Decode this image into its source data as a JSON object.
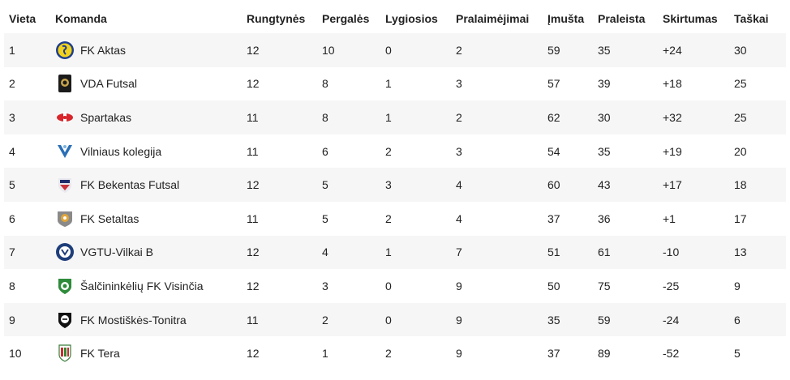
{
  "headers": {
    "place": "Vieta",
    "team": "Komanda",
    "played": "Rungtynės",
    "wins": "Pergalės",
    "draws": "Lygiosios",
    "losses": "Pralaimėjimai",
    "scored": "Įmušta",
    "conceded": "Praleista",
    "diff": "Skirtumas",
    "points": "Taškai"
  },
  "rows": [
    {
      "place": "1",
      "team": "FK Aktas",
      "logo": "fk-aktas-logo",
      "played": "12",
      "wins": "10",
      "draws": "0",
      "losses": "2",
      "scored": "59",
      "conceded": "35",
      "diff": "+24",
      "points": "30"
    },
    {
      "place": "2",
      "team": "VDA Futsal",
      "logo": "vda-futsal-logo",
      "played": "12",
      "wins": "8",
      "draws": "1",
      "losses": "3",
      "scored": "57",
      "conceded": "39",
      "diff": "+18",
      "points": "25"
    },
    {
      "place": "3",
      "team": "Spartakas",
      "logo": "spartakas-logo",
      "played": "11",
      "wins": "8",
      "draws": "1",
      "losses": "2",
      "scored": "62",
      "conceded": "30",
      "diff": "+32",
      "points": "25"
    },
    {
      "place": "4",
      "team": "Vilniaus kolegija",
      "logo": "vilniaus-kolegija-logo",
      "played": "11",
      "wins": "6",
      "draws": "2",
      "losses": "3",
      "scored": "54",
      "conceded": "35",
      "diff": "+19",
      "points": "20"
    },
    {
      "place": "5",
      "team": "FK Bekentas Futsal",
      "logo": "fk-bekentas-logo",
      "played": "12",
      "wins": "5",
      "draws": "3",
      "losses": "4",
      "scored": "60",
      "conceded": "43",
      "diff": "+17",
      "points": "18"
    },
    {
      "place": "6",
      "team": "FK Setaltas",
      "logo": "fk-setaltas-logo",
      "played": "11",
      "wins": "5",
      "draws": "2",
      "losses": "4",
      "scored": "37",
      "conceded": "36",
      "diff": "+1",
      "points": "17"
    },
    {
      "place": "7",
      "team": "VGTU-Vilkai B",
      "logo": "vgtu-vilkai-logo",
      "played": "12",
      "wins": "4",
      "draws": "1",
      "losses": "7",
      "scored": "51",
      "conceded": "61",
      "diff": "-10",
      "points": "13"
    },
    {
      "place": "8",
      "team": "Šalčininkėlių FK Visinčia",
      "logo": "visincia-logo",
      "played": "12",
      "wins": "3",
      "draws": "0",
      "losses": "9",
      "scored": "50",
      "conceded": "75",
      "diff": "-25",
      "points": "9"
    },
    {
      "place": "9",
      "team": "FK Mostiškės-Tonitra",
      "logo": "mostiskes-logo",
      "played": "11",
      "wins": "2",
      "draws": "0",
      "losses": "9",
      "scored": "35",
      "conceded": "59",
      "diff": "-24",
      "points": "6"
    },
    {
      "place": "10",
      "team": "FK Tera",
      "logo": "fk-tera-logo",
      "played": "12",
      "wins": "1",
      "draws": "2",
      "losses": "9",
      "scored": "37",
      "conceded": "89",
      "diff": "-52",
      "points": "5"
    }
  ]
}
